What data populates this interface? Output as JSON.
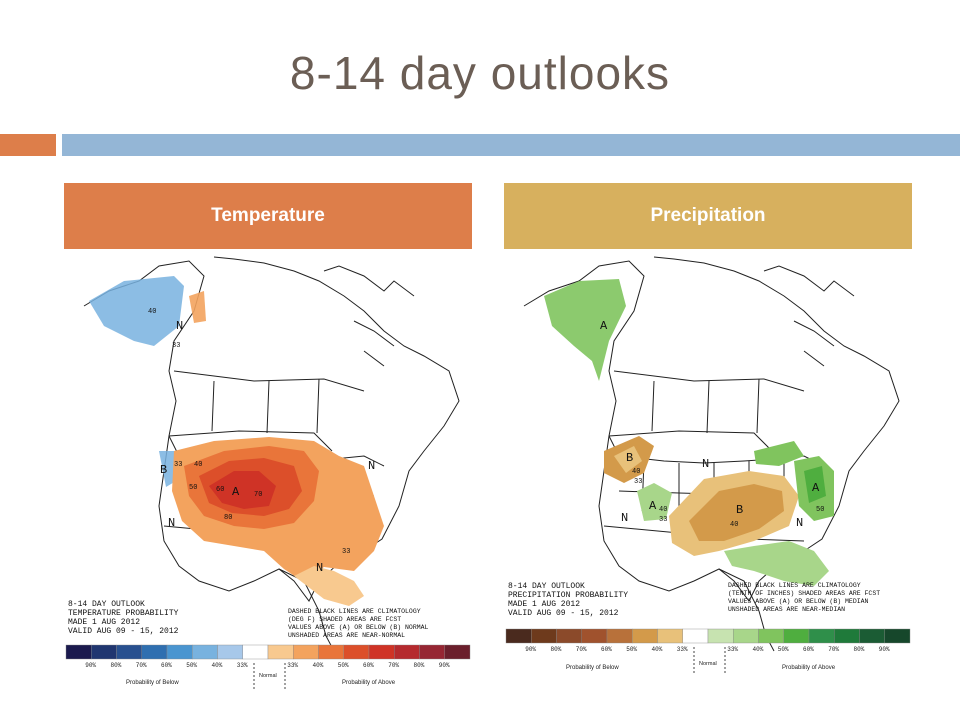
{
  "slide": {
    "title": "8-14 day outlooks"
  },
  "colors": {
    "accent_orange": "#dd7e4a",
    "accent_blue": "#94b6d6",
    "precip_header": "#d7b05e"
  },
  "temperature": {
    "header": "Temperature",
    "map_labels": {
      "b": "B",
      "n": "N",
      "a": "A"
    },
    "contour_labels": {
      "c40": "40",
      "c33": "33",
      "c50": "50",
      "c60": "60",
      "c70": "70",
      "c80": "80"
    },
    "outlook_text": [
      "8-14 DAY OUTLOOK",
      "TEMPERATURE PROBABILITY",
      "MADE   1 AUG 2012",
      "VALID   AUG 09 - 15, 2012"
    ],
    "note_text": [
      "DASHED BLACK LINES ARE CLIMATOLOGY",
      "(DEG F) SHADED AREAS ARE FCST",
      "VALUES ABOVE (A) OR BELOW (B) NORMAL",
      "UNSHADED AREAS ARE NEAR-NORMAL"
    ],
    "legend": {
      "colors": [
        "#1b1a4e",
        "#203670",
        "#28508f",
        "#2f6fb0",
        "#4a95d0",
        "#78b2df",
        "#a7c8ea",
        "#ffffff",
        "#f8c98f",
        "#f3a35e",
        "#e9753a",
        "#dc4f2a",
        "#cf3326",
        "#b52a2e",
        "#962633",
        "#6b1f2c"
      ],
      "ticks": [
        "90%",
        "80%",
        "70%",
        "60%",
        "50%",
        "40%",
        "33%",
        "33%",
        "40%",
        "50%",
        "60%",
        "70%",
        "80%",
        "90%"
      ],
      "below_label": "Probability of Below",
      "normal_label": "Normal",
      "above_label": "Probability of Above"
    }
  },
  "precipitation": {
    "header": "Precipitation",
    "map_labels": {
      "b": "B",
      "n": "N",
      "a": "A"
    },
    "contour_labels": {
      "c40": "40",
      "c33": "33",
      "c50": "50"
    },
    "outlook_text": [
      "8-14 DAY OUTLOOK",
      "PRECIPITATION PROBABILITY",
      "MADE   1 AUG 2012",
      "VALID   AUG 09 - 15, 2012"
    ],
    "note_text": [
      "DASHED BLACK LINES ARE CLIMATOLOGY",
      "(TENTH OF INCHES) SHADED AREAS ARE FCST",
      "VALUES ABOVE (A) OR BELOW (B) MEDIAN",
      "UNSHADED AREAS ARE NEAR-MEDIAN"
    ],
    "legend": {
      "colors": [
        "#4a2a1e",
        "#6e3a1c",
        "#8b4a2a",
        "#a0522d",
        "#b8713a",
        "#d39a4a",
        "#e8c17a",
        "#ffffff",
        "#c7e3b0",
        "#a8d68a",
        "#80c45e",
        "#4fae3f",
        "#2f8f4a",
        "#1f7a3a",
        "#1b5c34",
        "#16472b"
      ],
      "ticks": [
        "90%",
        "80%",
        "70%",
        "60%",
        "50%",
        "40%",
        "33%",
        "33%",
        "40%",
        "50%",
        "60%",
        "70%",
        "80%",
        "90%"
      ],
      "below_label": "Probability of Below",
      "normal_label": "Normal",
      "above_label": "Probability of Above"
    }
  }
}
